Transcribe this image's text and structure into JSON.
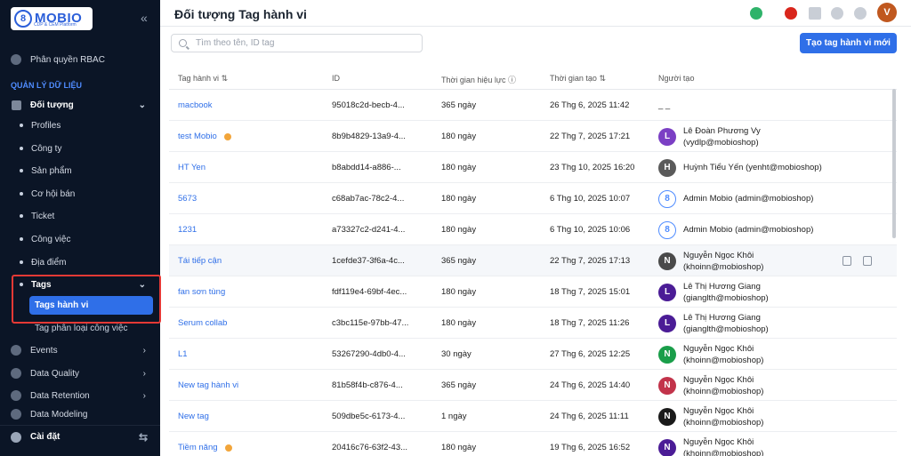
{
  "app": {
    "logo_text": "MOBIO",
    "logo_sub": "CDP & CEM Platform"
  },
  "sidebar": {
    "rbac": "Phân quyền RBAC",
    "section": "QUẢN LÝ DỮ LIỆU",
    "objects": "Đối tượng",
    "items": [
      "Profiles",
      "Công ty",
      "Sản phẩm",
      "Cơ hội bán",
      "Ticket",
      "Công việc",
      "Địa điểm"
    ],
    "tags": "Tags",
    "tags_active": "Tags hành vi",
    "tags_sub": "Tag phân loại công việc",
    "groups": [
      "Events",
      "Data Quality",
      "Data Retention",
      "Data Modeling"
    ],
    "settings": "Cài đặt"
  },
  "header": {
    "title": "Đối tượng Tag hành vi",
    "avatar_letter": "V"
  },
  "toolbar": {
    "search_placeholder": "Tìm theo tên, ID tag",
    "create_label": "Tạo tag hành vi mới"
  },
  "table": {
    "columns": [
      "Tag hành vi",
      "ID",
      "Thời gian hiệu lực",
      "Thời gian tạo",
      "Người tạo"
    ],
    "rows": [
      {
        "tag": "macbook",
        "id": "95018c2d-becb-4...",
        "validity": "365 ngày",
        "created": "26 Thg 6, 2025 11:42",
        "creator_line1": "_ _",
        "creator_line2": "",
        "avatar": "",
        "avatar_color": "",
        "badge": false
      },
      {
        "tag": "test Mobio",
        "id": "8b9b4829-13a9-4...",
        "validity": "180 ngày",
        "created": "22 Thg 7, 2025 17:21",
        "creator_line1": "Lê Đoàn Phương Vy",
        "creator_line2": "(vydlp@mobioshop)",
        "avatar": "L",
        "avatar_color": "#7b3fc4",
        "badge": true
      },
      {
        "tag": "HT Yen",
        "id": "b8abdd14-a886-...",
        "validity": "180 ngày",
        "created": "23 Thg 10, 2025 16:20",
        "creator_line1": "Huỳnh Tiểu Yến (yenht@mobioshop)",
        "creator_line2": "",
        "avatar": "H",
        "avatar_color": "#5a5a5a",
        "badge": false
      },
      {
        "tag": "5673",
        "id": "c68ab7ac-78c2-4...",
        "validity": "180 ngày",
        "created": "6 Thg 10, 2025 10:07",
        "creator_line1": "Admin Mobio (admin@mobioshop)",
        "creator_line2": "",
        "avatar": "8",
        "avatar_color": "admin",
        "badge": false
      },
      {
        "tag": "1231",
        "id": "a73327c2-d241-4...",
        "validity": "180 ngày",
        "created": "6 Thg 10, 2025 10:06",
        "creator_line1": "Admin Mobio (admin@mobioshop)",
        "creator_line2": "",
        "avatar": "8",
        "avatar_color": "admin",
        "badge": false
      },
      {
        "tag": "Tái tiếp cận",
        "id": "1cefde37-3f6a-4c...",
        "validity": "365 ngày",
        "created": "22 Thg 7, 2025 17:13",
        "creator_line1": "Nguyễn Ngọc Khôi",
        "creator_line2": "(khoinn@mobioshop)",
        "avatar": "N",
        "avatar_color": "#4a4a4a",
        "badge": false
      },
      {
        "tag": "fan sơn tùng",
        "id": "fdf119e4-69bf-4ec...",
        "validity": "180 ngày",
        "created": "18 Thg 7, 2025 15:01",
        "creator_line1": "Lê Thị Hương Giang",
        "creator_line2": "(gianglth@mobioshop)",
        "avatar": "L",
        "avatar_color": "#4b1c96",
        "badge": false
      },
      {
        "tag": "Serum collab",
        "id": "c3bc115e-97bb-47...",
        "validity": "180 ngày",
        "created": "18 Thg 7, 2025 11:26",
        "creator_line1": "Lê Thị Hương Giang",
        "creator_line2": "(gianglth@mobioshop)",
        "avatar": "L",
        "avatar_color": "#4b1c96",
        "badge": false
      },
      {
        "tag": "L1",
        "id": "53267290-4db0-4...",
        "validity": "30 ngày",
        "created": "27 Thg 6, 2025 12:25",
        "creator_line1": "Nguyễn Ngọc Khôi",
        "creator_line2": "(khoinn@mobioshop)",
        "avatar": "N",
        "avatar_color": "#1a9e4a",
        "badge": false
      },
      {
        "tag": "New tag hành vi",
        "id": "81b58f4b-c876-4...",
        "validity": "365 ngày",
        "created": "24 Thg 6, 2025 14:40",
        "creator_line1": "Nguyễn Ngọc Khôi",
        "creator_line2": "(khoinn@mobioshop)",
        "avatar": "N",
        "avatar_color": "#c2334a",
        "badge": false
      },
      {
        "tag": "New tag",
        "id": "509dbe5c-6173-4...",
        "validity": "1 ngày",
        "created": "24 Thg 6, 2025 11:11",
        "creator_line1": "Nguyễn Ngọc Khôi",
        "creator_line2": "(khoinn@mobioshop)",
        "avatar": "N",
        "avatar_color": "#1a1a1a",
        "badge": false
      },
      {
        "tag": "Tiềm năng",
        "id": "20416c76-63f2-43...",
        "validity": "180 ngày",
        "created": "19 Thg 6, 2025 16:52",
        "creator_line1": "Nguyễn Ngọc Khôi",
        "creator_line2": "(khoinn@mobioshop)",
        "avatar": "N",
        "avatar_color": "#4b1c96",
        "badge": true
      }
    ]
  },
  "icons": {
    "row_edit": "edit-icon",
    "row_copy": "copy-icon"
  },
  "colors": {
    "accent": "#2f6fe8",
    "sidebar_bg": "#0b1526",
    "highlight": "#e53935"
  }
}
